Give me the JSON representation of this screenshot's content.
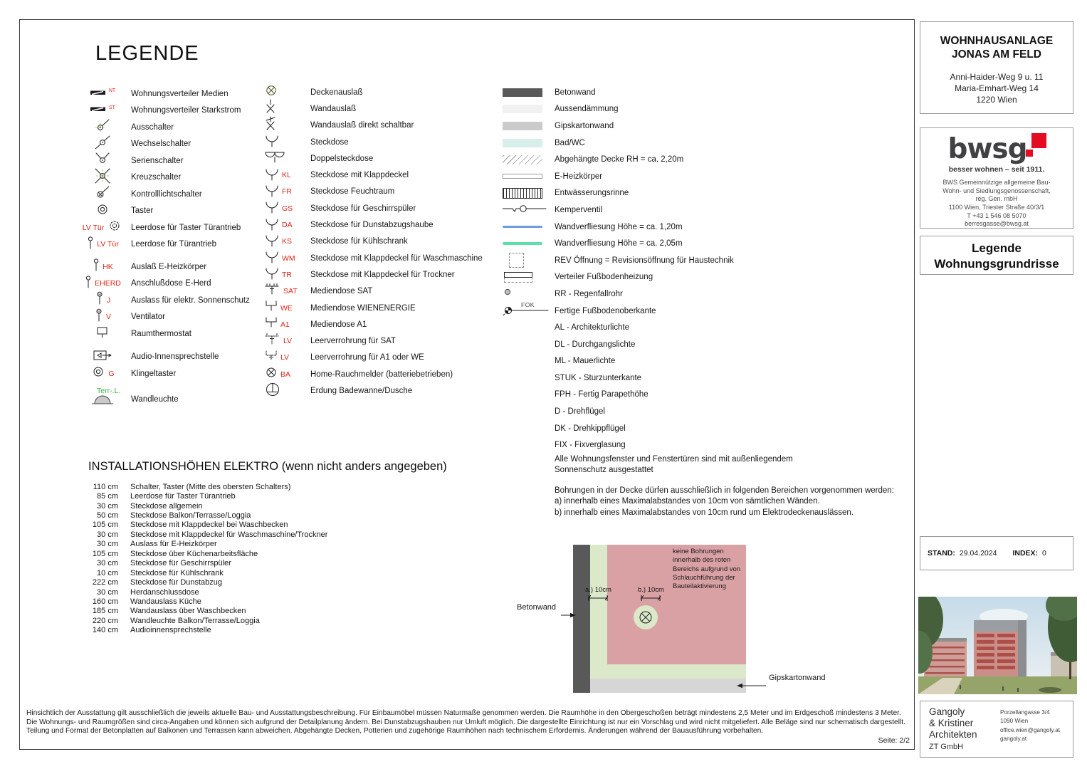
{
  "page": {
    "title": "LEGENDE",
    "page_label": "Seite: 2/2"
  },
  "colors": {
    "code_red": "#e02318",
    "terrace_green": "#3cb44a",
    "brand_red": "#e40c20",
    "tile_blue": "#6f9ae2",
    "tile_green": "#5ce0ab",
    "concrete": "#595959",
    "no_drill_pink": "#d9a1a4",
    "zone_green": "#dbe8c9",
    "gypsum": "#d6d6d6"
  },
  "legend": {
    "col1": [
      {
        "icon": "distributor",
        "code": "NT",
        "label": "Wohnungsverteiler Medien"
      },
      {
        "icon": "distributor",
        "code": "ST",
        "label": "Wohnungsverteiler Starkstrom"
      },
      {
        "icon": "off-switch",
        "label": "Ausschalter"
      },
      {
        "icon": "toggle-switch",
        "label": "Wechselschalter"
      },
      {
        "icon": "series-switch",
        "label": "Serienschalter"
      },
      {
        "icon": "cross-switch",
        "label": "Kreuzschalter"
      },
      {
        "icon": "control-light-switch",
        "label": "Kontrolllichtschalter"
      },
      {
        "icon": "push-button",
        "label": "Taster"
      },
      {
        "icon": "empty-socket-push",
        "code_left": "LV Tür",
        "label": "Leerdose für Taster Türantrieb"
      },
      {
        "icon": "door-drive-socket",
        "code": "LV Tür",
        "label": "Leerdose für Türantrieb"
      },
      {
        "icon": "heater-outlet",
        "code": "HK",
        "label": "Auslaß E-Heizkörper"
      },
      {
        "icon": "heater-outlet",
        "code": "EHERD",
        "label": "Anschlußdose E-Herd"
      },
      {
        "icon": "motor-outlet",
        "code": "J",
        "label": "Auslass für elektr. Sonnenschutz"
      },
      {
        "icon": "motor-outlet",
        "code": "V",
        "label": "Ventilator"
      },
      {
        "icon": "room-thermostat",
        "label": "Raumthermostat"
      },
      {
        "icon": "audio-intercom",
        "label": "Audio-Innensprechstelle"
      },
      {
        "icon": "bell-button",
        "code": "G",
        "label": "Klingeltaster"
      },
      {
        "icon": "wall-light",
        "code_top": "Terr-.L.",
        "label": "Wandleuchte"
      }
    ],
    "col2": [
      {
        "icon": "ceiling-outlet",
        "label": "Deckenauslaß"
      },
      {
        "icon": "wall-outlet",
        "label": "Wandauslaß"
      },
      {
        "icon": "wall-outlet-switched",
        "label": "Wandauslaß direkt schaltbar"
      },
      {
        "icon": "socket",
        "label": "Steckdose"
      },
      {
        "icon": "double-socket",
        "label": "Doppelsteckdose"
      },
      {
        "icon": "socket",
        "code": "KL",
        "label": "Steckdose mit Klappdeckel"
      },
      {
        "icon": "socket",
        "code": "FR",
        "label": "Steckdose Feuchtraum"
      },
      {
        "icon": "socket",
        "code": "GS",
        "label": "Steckdose für Geschirrspüler"
      },
      {
        "icon": "socket",
        "code": "DA",
        "label": "Steckdose für Dunstabzugshaube"
      },
      {
        "icon": "socket",
        "code": "KS",
        "label": "Steckdose für Kühlschrank"
      },
      {
        "icon": "socket",
        "code": "WM",
        "label": "Steckdose mit Klappdeckel für Waschmaschine"
      },
      {
        "icon": "socket",
        "code": "TR",
        "label": "Steckdose mit Klappdeckel für Trockner"
      },
      {
        "icon": "media-sat",
        "code": "SAT",
        "label": "Mediendose SAT"
      },
      {
        "icon": "media-bracket",
        "code": "WE",
        "label": "Mediendose WIENENERGIE"
      },
      {
        "icon": "media-bracket",
        "code": "A1",
        "label": "Mediendose A1"
      },
      {
        "icon": "conduit-sat",
        "code": "LV",
        "label": "Leerverrohrung für SAT"
      },
      {
        "icon": "conduit-bracket",
        "code": "LV",
        "label": "Leerverrohrung für A1 oder WE"
      },
      {
        "icon": "smoke-detector",
        "code": "BA",
        "label": "Home-Rauchmelder (batteriebetrieben)"
      },
      {
        "icon": "earthing",
        "label": "Erdung Badewanne/Dusche"
      }
    ],
    "col3": [
      {
        "icon": "swatch-concrete",
        "label": "Betonwand"
      },
      {
        "icon": "swatch-insulation",
        "label": "Aussendämmung"
      },
      {
        "icon": "swatch-gypsum",
        "label": "Gipskartonwand"
      },
      {
        "icon": "swatch-bathroom",
        "label": "Bad/WC"
      },
      {
        "icon": "hatch-ceiling",
        "label": "Abgehängte Decke RH = ca. 2,20m"
      },
      {
        "icon": "e-radiator",
        "label": "E-Heizkörper"
      },
      {
        "icon": "drainage-channel",
        "label": "Entwässerungsrinne"
      },
      {
        "icon": "kemper-valve",
        "label": "Kemperventil"
      },
      {
        "icon": "tile-line-blue",
        "label": "Wandverfliesung Höhe = ca. 1,20m"
      },
      {
        "icon": "tile-line-green",
        "label": "Wandverfliesung Höhe = ca. 2,05m"
      },
      {
        "icon": "rev-opening",
        "label": "REV Öffnung = Revisionsöffnung für Haustechnik"
      },
      {
        "icon": "floor-heating-distributor",
        "label": "Verteiler Fußbodenheizung"
      },
      {
        "icon": "rain-pipe",
        "label": "RR - Regenfallrohr"
      },
      {
        "icon": "fok-mark",
        "code": "FOK",
        "label": "Fertige Fußbodenoberkante"
      },
      {
        "label": "AL - Architekturlichte"
      },
      {
        "label": "DL - Durchgangslichte"
      },
      {
        "label": "ML - Mauerlichte"
      },
      {
        "label": "STUK - Sturzunterkante"
      },
      {
        "label": "FPH - Fertig Parapethöhe"
      },
      {
        "label": "D - Drehflügel"
      },
      {
        "label": "DK - Drehkippflügel"
      },
      {
        "label": "FIX - Fixverglasung"
      }
    ],
    "notes": [
      "Alle Wohnungsfenster und Fenstertüren sind mit außenliegendem\nSonnenschutz ausgestattet",
      "Bohrungen in der Decke dürfen ausschließlich in folgenden Bereichen vorgenommen werden:\na) innerhalb eines Maximalabstandes von 10cm von sämtlichen Wänden.\nb) innerhalb eines Maximalabstandes von 10cm rund um Elektrodeckenauslässen."
    ]
  },
  "install": {
    "title": "INSTALLATIONSHÖHEN ELEKTRO (wenn nicht anders angegeben)",
    "rows": [
      {
        "height": "110 cm",
        "label": "Schalter, Taster (Mitte des obersten Schalters)"
      },
      {
        "height": "85 cm",
        "label": "Leerdose für Taster Türantrieb"
      },
      {
        "height": "30 cm",
        "label": "Steckdose allgemein"
      },
      {
        "height": "50 cm",
        "label": "Steckdose Balkon/Terrasse/Loggia"
      },
      {
        "height": "105 cm",
        "label": "Steckdose mit Klappdeckel bei Waschbecken"
      },
      {
        "height": "30 cm",
        "label": "Steckdose mit Klappdeckel für Waschmaschine/Trockner"
      },
      {
        "height": "30 cm",
        "label": "Auslass für E-Heizkörper"
      },
      {
        "height": "105 cm",
        "label": "Steckdose über Küchenarbeitsfläche"
      },
      {
        "height": "30 cm",
        "label": "Steckdose für Geschirrspüler"
      },
      {
        "height": "10 cm",
        "label": "Steckdose für Kühlschrank"
      },
      {
        "height": "222 cm",
        "label": "Steckdose für Dunstabzug"
      },
      {
        "height": "30 cm",
        "label": "Herdanschlussdose"
      },
      {
        "height": "160 cm",
        "label": "Wandauslass Küche"
      },
      {
        "height": "185 cm",
        "label": "Wandauslass über Waschbecken"
      },
      {
        "height": "220 cm",
        "label": "Wandleuchte Balkon/Terrasse/Loggia"
      },
      {
        "height": "140 cm",
        "label": "Audioinnensprechstelle"
      }
    ]
  },
  "diagram": {
    "wall_label": "Betonwand",
    "gypsum_label": "Gipskartonwand",
    "dim_a": "a.) 10cm",
    "dim_b": "b.) 10cm",
    "note": "keine Bohrungen innerhalb des roten Bereichs aufgrund von Schlauchführung der Bauteilaktivierung"
  },
  "project": {
    "title1": "WOHNHAUSANLAGE",
    "title2": "JONAS AM FELD",
    "address": [
      "Anni-Haider-Weg 9 u. 11",
      "Maria-Emhart-Weg 14",
      "1220 Wien"
    ]
  },
  "bwsg": {
    "logo_text": "bwsg",
    "tagline": "besser wohnen – seit 1911.",
    "lines": [
      "BWS Gemeinnützige allgemeine Bau-",
      "Wohn- und Siedlungsgenossenschaft,",
      "reg. Gen. mbH",
      "1100 Wien, Triester Straße 40/3/1",
      "T +43 1 546 08 5070",
      "berresgasse@bwsg.at"
    ]
  },
  "doc": {
    "line1": "Legende",
    "line2": "Wohnungsgrundrisse"
  },
  "status": {
    "stand_label": "STAND:",
    "stand_value": "29.04.2024",
    "index_label": "INDEX:",
    "index_value": "0"
  },
  "architect": {
    "name_lines": [
      "Gangoly",
      "& Kristiner",
      "Architekten"
    ],
    "company": "ZT GmbH",
    "contact_lines": [
      "Porzellangasse 3/4",
      "1090 Wien",
      "office.wien@gangoly.at",
      "gangoly.at"
    ]
  },
  "footer": {
    "lines": [
      "Hinsichtlich der Ausstattung gilt ausschließlich die jeweils aktuelle Bau- und Ausstattungsbeschreibung. Für Einbaumöbel müssen Naturmaße genommen werden. Die Raumhöhe in den Obergeschoßen beträgt mindestens 2,5 Meter und im Erdgeschoß mindestens 3 Meter.",
      "Die Wohnungs- und Raumgrößen sind circa-Angaben und können sich aufgrund der Detailplanung ändern. Bei Dunstabzugshauben nur Umluft möglich. Die dargestellte Einrichtung ist nur ein Vorschlag und wird nicht mitgeliefert. Alle Beläge sind nur schematisch dargestellt.",
      "Teilung und Format der Betonplatten auf Balkonen und Terrassen kann abweichen. Abgehängte Decken, Potterien und zugehörige Raumhöhen nach technischem Erfordernis. Änderungen während der Bauausführung vorbehalten."
    ]
  }
}
